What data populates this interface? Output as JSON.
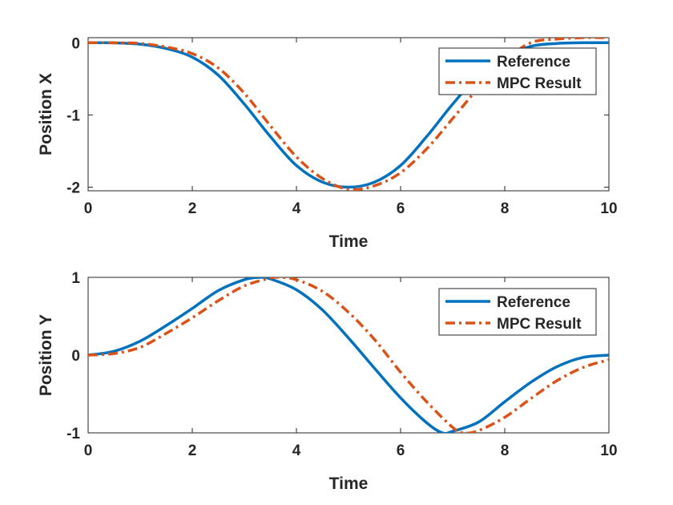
{
  "chart_data": [
    {
      "type": "line",
      "xlabel": "Time",
      "ylabel": "Position X",
      "xlim": [
        0,
        10
      ],
      "ylim": [
        -2.05,
        0.07
      ],
      "xticks": [
        0,
        2,
        4,
        6,
        8,
        10
      ],
      "yticks": [
        -2,
        -1,
        0
      ],
      "xtick_labels": [
        "0",
        "2",
        "4",
        "6",
        "8",
        "10"
      ],
      "ytick_labels": [
        "-2",
        "-1",
        "0"
      ],
      "legend_position": "top-right",
      "grid": false,
      "series": [
        {
          "name": "Reference",
          "color": "#0072BD",
          "style": "solid",
          "x": [
            0,
            0.5,
            1,
            1.5,
            2,
            2.5,
            3,
            3.5,
            4,
            4.5,
            5,
            5.5,
            6,
            6.5,
            7,
            7.5,
            8,
            8.5,
            9,
            9.5,
            10
          ],
          "y": [
            0,
            -0.002,
            -0.02,
            -0.08,
            -0.2,
            -0.45,
            -0.85,
            -1.3,
            -1.7,
            -1.93,
            -2.0,
            -1.93,
            -1.7,
            -1.3,
            -0.85,
            -0.45,
            -0.2,
            -0.05,
            -0.01,
            0,
            0
          ]
        },
        {
          "name": "MPC Result",
          "color": "#D95319",
          "style": "dashdot",
          "x": [
            0,
            0.5,
            1,
            1.5,
            2,
            2.5,
            3,
            3.5,
            4,
            4.5,
            5,
            5.5,
            6,
            6.5,
            7,
            7.5,
            8,
            8.5,
            9,
            9.5,
            10
          ],
          "y": [
            0,
            -0.001,
            -0.01,
            -0.06,
            -0.15,
            -0.35,
            -0.7,
            -1.15,
            -1.58,
            -1.88,
            -2.03,
            -1.98,
            -1.8,
            -1.47,
            -1.05,
            -0.62,
            -0.25,
            0.0,
            0.05,
            0.07,
            0.07
          ]
        }
      ]
    },
    {
      "type": "line",
      "xlabel": "Time",
      "ylabel": "Position Y",
      "xlim": [
        0,
        10
      ],
      "ylim": [
        -1,
        1
      ],
      "xticks": [
        0,
        2,
        4,
        6,
        8,
        10
      ],
      "yticks": [
        -1,
        0,
        1
      ],
      "xtick_labels": [
        "0",
        "2",
        "4",
        "6",
        "8",
        "10"
      ],
      "ytick_labels": [
        "-1",
        "0",
        "1"
      ],
      "legend_position": "top-right",
      "grid": false,
      "series": [
        {
          "name": "Reference",
          "color": "#0072BD",
          "style": "solid",
          "x": [
            0,
            0.5,
            1,
            1.5,
            2,
            2.5,
            3,
            3.3,
            3.5,
            4,
            4.5,
            5,
            5.5,
            6,
            6.5,
            6.8,
            7,
            7.5,
            8,
            8.5,
            9,
            9.5,
            10
          ],
          "y": [
            0,
            0.05,
            0.18,
            0.38,
            0.6,
            0.83,
            0.97,
            1.0,
            0.98,
            0.84,
            0.58,
            0.22,
            -0.17,
            -0.55,
            -0.87,
            -1.0,
            -0.98,
            -0.86,
            -0.6,
            -0.35,
            -0.15,
            -0.03,
            0
          ]
        },
        {
          "name": "MPC Result",
          "color": "#D95319",
          "style": "dashdot",
          "x": [
            0,
            0.5,
            1,
            1.5,
            2,
            2.5,
            3,
            3.5,
            3.7,
            4,
            4.5,
            5,
            5.5,
            6,
            6.5,
            7,
            7.2,
            7.5,
            8,
            8.5,
            9,
            9.5,
            10
          ],
          "y": [
            0,
            0.02,
            0.1,
            0.28,
            0.48,
            0.7,
            0.89,
            0.99,
            1.0,
            0.97,
            0.82,
            0.55,
            0.2,
            -0.22,
            -0.6,
            -0.93,
            -1.0,
            -0.97,
            -0.8,
            -0.56,
            -0.33,
            -0.16,
            -0.06
          ]
        }
      ]
    }
  ],
  "colors": {
    "reference": "#0072BD",
    "mpc": "#D95319",
    "axes": "#262626"
  }
}
